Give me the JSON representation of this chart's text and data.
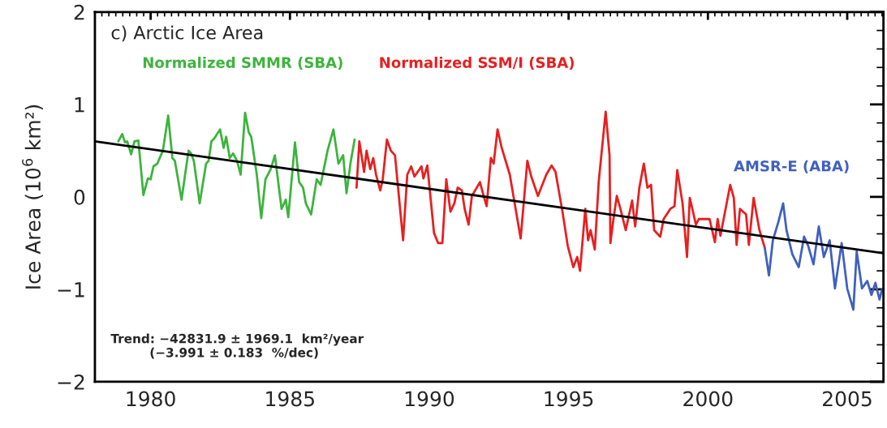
{
  "chart_data": {
    "type": "line",
    "title": "c) Arctic Ice Area",
    "ylabel": "Ice Area (10$^{6}$ km²)",
    "xlim": [
      1978,
      2006.3
    ],
    "xticks": [
      1980,
      1985,
      1990,
      1995,
      2000,
      2005
    ],
    "ylim": [
      -2,
      2
    ],
    "yticks": [
      {
        "value": -2,
        "label": "−2"
      },
      {
        "value": -1,
        "label": "−1"
      },
      0,
      1,
      2
    ],
    "grid": false,
    "legend": false,
    "marker": "none",
    "line_style": "solid",
    "annotations": [
      "Trend: −42831.9 ± 1969.1  km²/year\n         (−3.991 ± 0.183  %/dec)"
    ],
    "series": [
      {
        "name": "Normalized SMMR (SBA)",
        "color": "#3cb43c",
        "x": [
          1978.84,
          1978.98,
          1979.08,
          1979.16,
          1979.3,
          1979.42,
          1979.56,
          1979.74,
          1979.9,
          1980.0,
          1980.1,
          1980.24,
          1980.44,
          1980.63,
          1980.78,
          1980.87,
          1981.11,
          1981.36,
          1981.45,
          1981.55,
          1981.76,
          1981.99,
          1982.08,
          1982.18,
          1982.28,
          1982.49,
          1982.62,
          1982.71,
          1982.84,
          1982.96,
          1983.1,
          1983.23,
          1983.39,
          1983.52,
          1983.61,
          1983.81,
          1983.97,
          1984.12,
          1984.31,
          1984.46,
          1984.7,
          1984.85,
          1984.94,
          1985.18,
          1985.33,
          1985.47,
          1985.57,
          1985.76,
          1985.96,
          1986.1,
          1986.35,
          1986.56,
          1986.74,
          1986.91,
          1987.03,
          1987.17,
          1987.32
        ],
        "values": [
          0.6,
          0.68,
          0.59,
          0.6,
          0.46,
          0.6,
          0.61,
          0.02,
          0.2,
          0.19,
          0.33,
          0.36,
          0.5,
          0.88,
          0.42,
          0.39,
          -0.03,
          0.5,
          0.47,
          0.39,
          -0.07,
          0.36,
          0.39,
          0.6,
          0.63,
          0.73,
          0.53,
          0.65,
          0.42,
          0.47,
          0.39,
          0.24,
          0.91,
          0.7,
          0.65,
          0.24,
          -0.23,
          0.19,
          0.3,
          0.45,
          -0.13,
          -0.03,
          -0.22,
          0.59,
          0.16,
          0.1,
          -0.07,
          -0.19,
          0.19,
          0.13,
          0.5,
          0.73,
          0.36,
          0.45,
          0.04,
          0.36,
          0.62
        ]
      },
      {
        "name": "Normalized SSM/I (SBA)",
        "color": "#e62020",
        "x": [
          1987.39,
          1987.49,
          1987.66,
          1987.75,
          1987.88,
          1987.99,
          1988.09,
          1988.24,
          1988.33,
          1988.48,
          1988.62,
          1988.77,
          1989.06,
          1989.21,
          1989.35,
          1989.47,
          1989.72,
          1989.79,
          1989.93,
          1989.98,
          1990.17,
          1990.32,
          1990.47,
          1990.61,
          1990.76,
          1990.9,
          1991.02,
          1991.17,
          1991.27,
          1991.41,
          1991.53,
          1991.82,
          1991.97,
          1992.06,
          1992.21,
          1992.31,
          1992.45,
          1992.6,
          1992.89,
          1993.28,
          1993.52,
          1993.66,
          1993.9,
          1994.2,
          1994.39,
          1994.53,
          1994.78,
          1994.97,
          1995.17,
          1995.31,
          1995.41,
          1995.6,
          1995.7,
          1995.79,
          1995.94,
          1996.08,
          1996.33,
          1996.47,
          1996.5,
          1996.61,
          1996.73,
          1996.86,
          1997.05,
          1997.28,
          1997.39,
          1997.54,
          1997.7,
          1997.83,
          1997.96,
          1998.07,
          1998.29,
          1998.41,
          1998.65,
          1998.8,
          1998.9,
          1999.09,
          1999.25,
          1999.35,
          1999.57,
          1999.67,
          2000.06,
          2000.25,
          2000.35,
          2000.45,
          2000.8,
          2000.93,
          2001.03,
          2001.15,
          2001.37,
          2001.47,
          2001.64,
          2001.85,
          2002.04
        ],
        "values": [
          0.1,
          0.6,
          0.27,
          0.5,
          0.3,
          0.42,
          0.24,
          0.07,
          0.19,
          0.62,
          0.5,
          0.45,
          -0.47,
          0.24,
          0.33,
          0.22,
          0.33,
          0.2,
          0.34,
          0.19,
          -0.39,
          -0.5,
          -0.5,
          0.19,
          -0.16,
          -0.07,
          0.1,
          0.07,
          -0.13,
          -0.3,
          0.01,
          0.16,
          -0.01,
          -0.1,
          0.42,
          0.36,
          0.73,
          0.53,
          0.24,
          -0.45,
          0.39,
          0.22,
          0.01,
          0.24,
          0.34,
          0.27,
          -0.16,
          -0.53,
          -0.76,
          -0.65,
          -0.8,
          -0.13,
          -0.47,
          -0.36,
          -0.57,
          0.16,
          0.92,
          0.45,
          -0.5,
          -0.24,
          0.01,
          -0.13,
          -0.36,
          -0.04,
          -0.32,
          0.1,
          0.36,
          0.1,
          0.13,
          -0.36,
          -0.43,
          -0.24,
          -0.13,
          -0.1,
          0.29,
          -0.07,
          -0.65,
          -0.01,
          -0.3,
          -0.24,
          -0.24,
          -0.49,
          -0.24,
          -0.42,
          0.13,
          -0.01,
          -0.52,
          -0.13,
          -0.19,
          -0.52,
          -0.01,
          -0.36,
          -0.55
        ]
      },
      {
        "name": "AMSR-E (ABA)",
        "color": "#4060c0",
        "x": [
          2002.04,
          2002.19,
          2002.33,
          2002.53,
          2002.7,
          2002.82,
          2003.03,
          2003.26,
          2003.45,
          2003.6,
          2003.79,
          2003.98,
          2004.16,
          2004.37,
          2004.56,
          2004.8,
          2005.0,
          2005.22,
          2005.34,
          2005.53,
          2005.72,
          2005.87,
          2006.01,
          2006.16,
          2006.25
        ],
        "values": [
          -0.55,
          -0.85,
          -0.47,
          -0.27,
          -0.07,
          -0.36,
          -0.62,
          -0.76,
          -0.43,
          -0.53,
          -0.73,
          -0.32,
          -0.65,
          -0.47,
          -0.99,
          -0.5,
          -0.99,
          -1.22,
          -0.59,
          -0.99,
          -0.91,
          -1.06,
          -0.93,
          -1.11,
          -1.0
        ]
      },
      {
        "type": "line",
        "color": "#000000",
        "x": [
          1978,
          2006.3
        ],
        "values": [
          0.6,
          -0.61
        ]
      }
    ]
  }
}
